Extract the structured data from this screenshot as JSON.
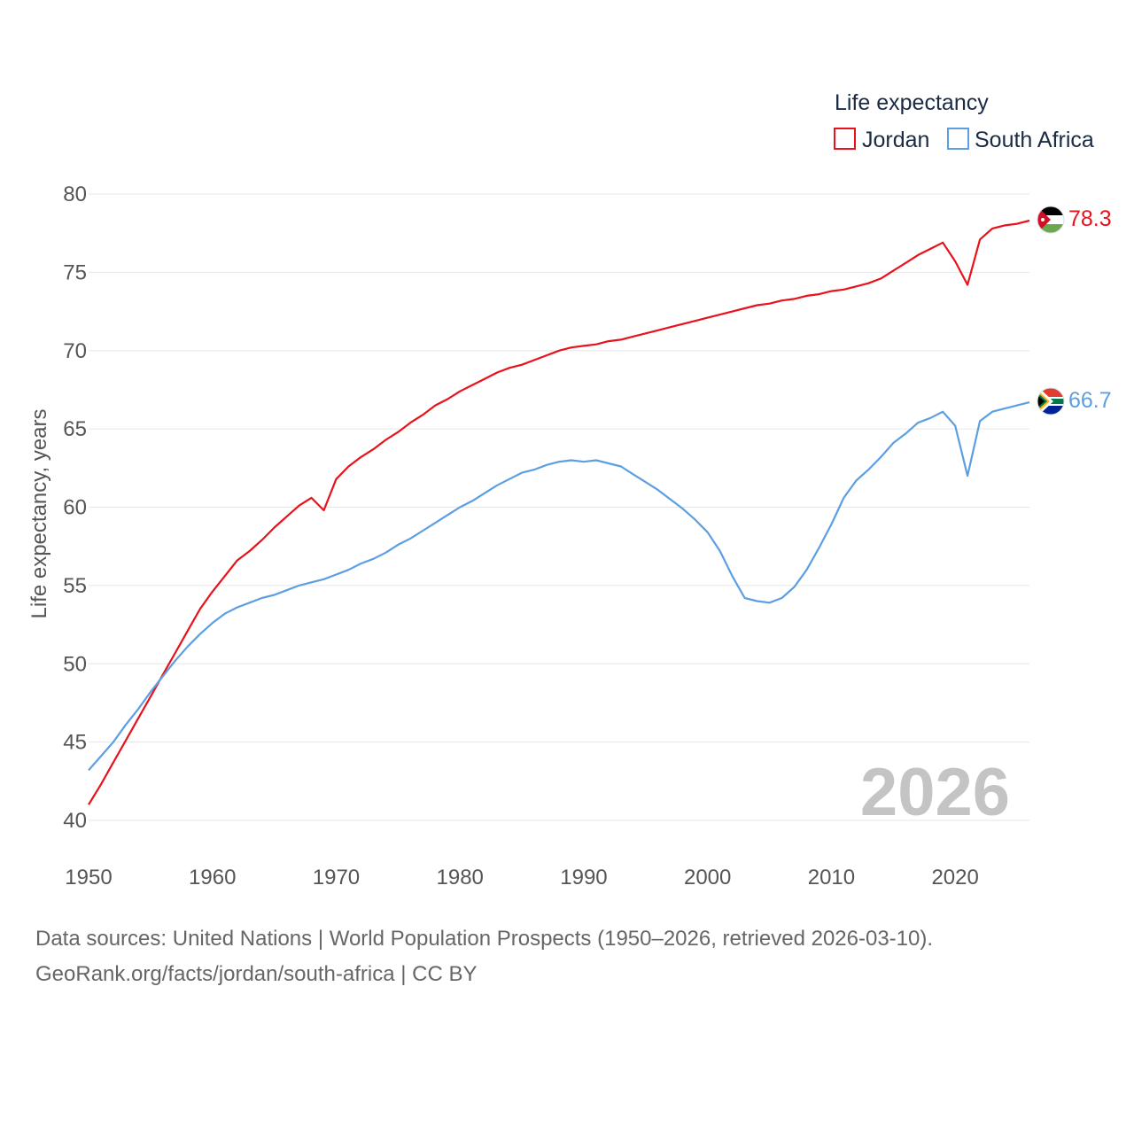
{
  "chart_data": {
    "type": "line",
    "legend_title": "Life expectancy",
    "ylabel": "Life expectancy, years",
    "xlabel": "",
    "xlim": [
      1950,
      2026
    ],
    "ylim": [
      40,
      80
    ],
    "x_ticks": [
      "1950",
      "1960",
      "1970",
      "1980",
      "1990",
      "2000",
      "2010",
      "2020"
    ],
    "y_ticks": [
      "40",
      "45",
      "50",
      "55",
      "60",
      "65",
      "70",
      "75",
      "80"
    ],
    "year_label": "2026",
    "legend_position": "top-right",
    "grid": true,
    "x": [
      1950,
      1951,
      1952,
      1953,
      1954,
      1955,
      1956,
      1957,
      1958,
      1959,
      1960,
      1961,
      1962,
      1963,
      1964,
      1965,
      1966,
      1967,
      1968,
      1969,
      1970,
      1971,
      1972,
      1973,
      1974,
      1975,
      1976,
      1977,
      1978,
      1979,
      1980,
      1981,
      1982,
      1983,
      1984,
      1985,
      1986,
      1987,
      1988,
      1989,
      1990,
      1991,
      1992,
      1993,
      1994,
      1995,
      1996,
      1997,
      1998,
      1999,
      2000,
      2001,
      2002,
      2003,
      2004,
      2005,
      2006,
      2007,
      2008,
      2009,
      2010,
      2011,
      2012,
      2013,
      2014,
      2015,
      2016,
      2017,
      2018,
      2019,
      2020,
      2021,
      2022,
      2023,
      2024,
      2025,
      2026
    ],
    "series": [
      {
        "name": "Jordan",
        "color": "#e8121c",
        "end_label": "78.3",
        "flag": "jordan-flag-icon",
        "values": [
          41.0,
          42.3,
          43.7,
          45.1,
          46.5,
          47.9,
          49.3,
          50.7,
          52.1,
          53.5,
          54.6,
          55.6,
          56.6,
          57.2,
          57.9,
          58.7,
          59.4,
          60.1,
          60.6,
          59.8,
          61.8,
          62.6,
          63.2,
          63.7,
          64.3,
          64.8,
          65.4,
          65.9,
          66.5,
          66.9,
          67.4,
          67.8,
          68.2,
          68.6,
          68.9,
          69.1,
          69.4,
          69.7,
          70.0,
          70.2,
          70.3,
          70.4,
          70.6,
          70.7,
          70.9,
          71.1,
          71.3,
          71.5,
          71.7,
          71.9,
          72.1,
          72.3,
          72.5,
          72.7,
          72.9,
          73.0,
          73.2,
          73.3,
          73.5,
          73.6,
          73.8,
          73.9,
          74.1,
          74.3,
          74.6,
          75.1,
          75.6,
          76.1,
          76.5,
          76.9,
          75.7,
          74.2,
          77.1,
          77.8,
          78.0,
          78.1,
          78.3
        ]
      },
      {
        "name": "South Africa",
        "color": "#5b9fe2",
        "end_label": "66.7",
        "flag": "south-africa-flag-icon",
        "values": [
          43.2,
          44.1,
          45.0,
          46.1,
          47.1,
          48.2,
          49.2,
          50.2,
          51.1,
          51.9,
          52.6,
          53.2,
          53.6,
          53.9,
          54.2,
          54.4,
          54.7,
          55.0,
          55.2,
          55.4,
          55.7,
          56.0,
          56.4,
          56.7,
          57.1,
          57.6,
          58.0,
          58.5,
          59.0,
          59.5,
          60.0,
          60.4,
          60.9,
          61.4,
          61.8,
          62.2,
          62.4,
          62.7,
          62.9,
          63.0,
          62.9,
          63.0,
          62.8,
          62.6,
          62.1,
          61.6,
          61.1,
          60.5,
          59.9,
          59.2,
          58.4,
          57.2,
          55.6,
          54.2,
          54.0,
          53.9,
          54.2,
          54.9,
          56.0,
          57.4,
          58.9,
          60.6,
          61.7,
          62.4,
          63.2,
          64.1,
          64.7,
          65.4,
          65.7,
          66.1,
          65.2,
          62.0,
          65.5,
          66.1,
          66.3,
          66.5,
          66.7
        ]
      }
    ]
  },
  "footer": {
    "source_line": "Data sources: United Nations | World Population Prospects (1950–2026, retrieved 2026-03-10).",
    "credit_line": "GeoRank.org/facts/jordan/south-africa | CC BY"
  }
}
